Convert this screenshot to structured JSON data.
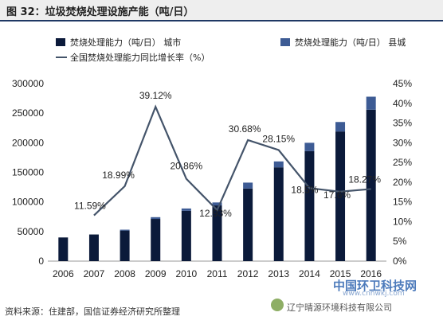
{
  "title": "图 32：垃圾焚烧处理设施产能（吨/日）",
  "source": "资料来源：住建部，国信证券经济研究所整理",
  "watermark": {
    "main": "中国环卫科技网",
    "url": "www.cnhwkj.com",
    "sub": "辽宁晴源环境科技有限公司"
  },
  "colors": {
    "city": "#0b1a3a",
    "county": "#3d5b94",
    "growth": "#44546a"
  },
  "chart_data": {
    "type": "bar",
    "stacked": true,
    "categories": [
      "2006",
      "2007",
      "2008",
      "2009",
      "2010",
      "2011",
      "2012",
      "2013",
      "2014",
      "2015",
      "2016"
    ],
    "series": [
      {
        "name": "焚烧处理能力（吨/日）  城市",
        "axis": "left",
        "values": [
          39966,
          45000,
          51606,
          71253,
          84940,
          94114,
          122649,
          158488,
          185957,
          219080,
          255850
        ]
      },
      {
        "name": "焚烧处理能力（吨/日）  县城",
        "axis": "left",
        "values": [
          0,
          0,
          1500,
          3000,
          4000,
          5000,
          10000,
          10000,
          14000,
          16000,
          22000
        ]
      },
      {
        "name": "全国焚烧处理能力同比增长率（%）",
        "type": "line",
        "axis": "right",
        "values": [
          null,
          11.59,
          18.99,
          39.12,
          20.86,
          12.93,
          30.68,
          28.15,
          18.5,
          17.6,
          18.27
        ]
      }
    ],
    "data_labels": [
      "",
      "11.59%",
      "18.99%",
      "39.12%",
      "20.86%",
      "12.93%",
      "30.68%",
      "28.15%",
      "18.5%",
      "17.6%",
      "18.27%"
    ],
    "ylim": [
      0,
      300000
    ],
    "yticks": [
      "0",
      "50000",
      "100000",
      "150000",
      "200000",
      "250000",
      "300000"
    ],
    "y2lim": [
      0,
      45
    ],
    "y2ticks": [
      "0%",
      "5%",
      "10%",
      "15%",
      "20%",
      "25%",
      "30%",
      "35%",
      "40%",
      "45%"
    ],
    "legend": "top"
  }
}
